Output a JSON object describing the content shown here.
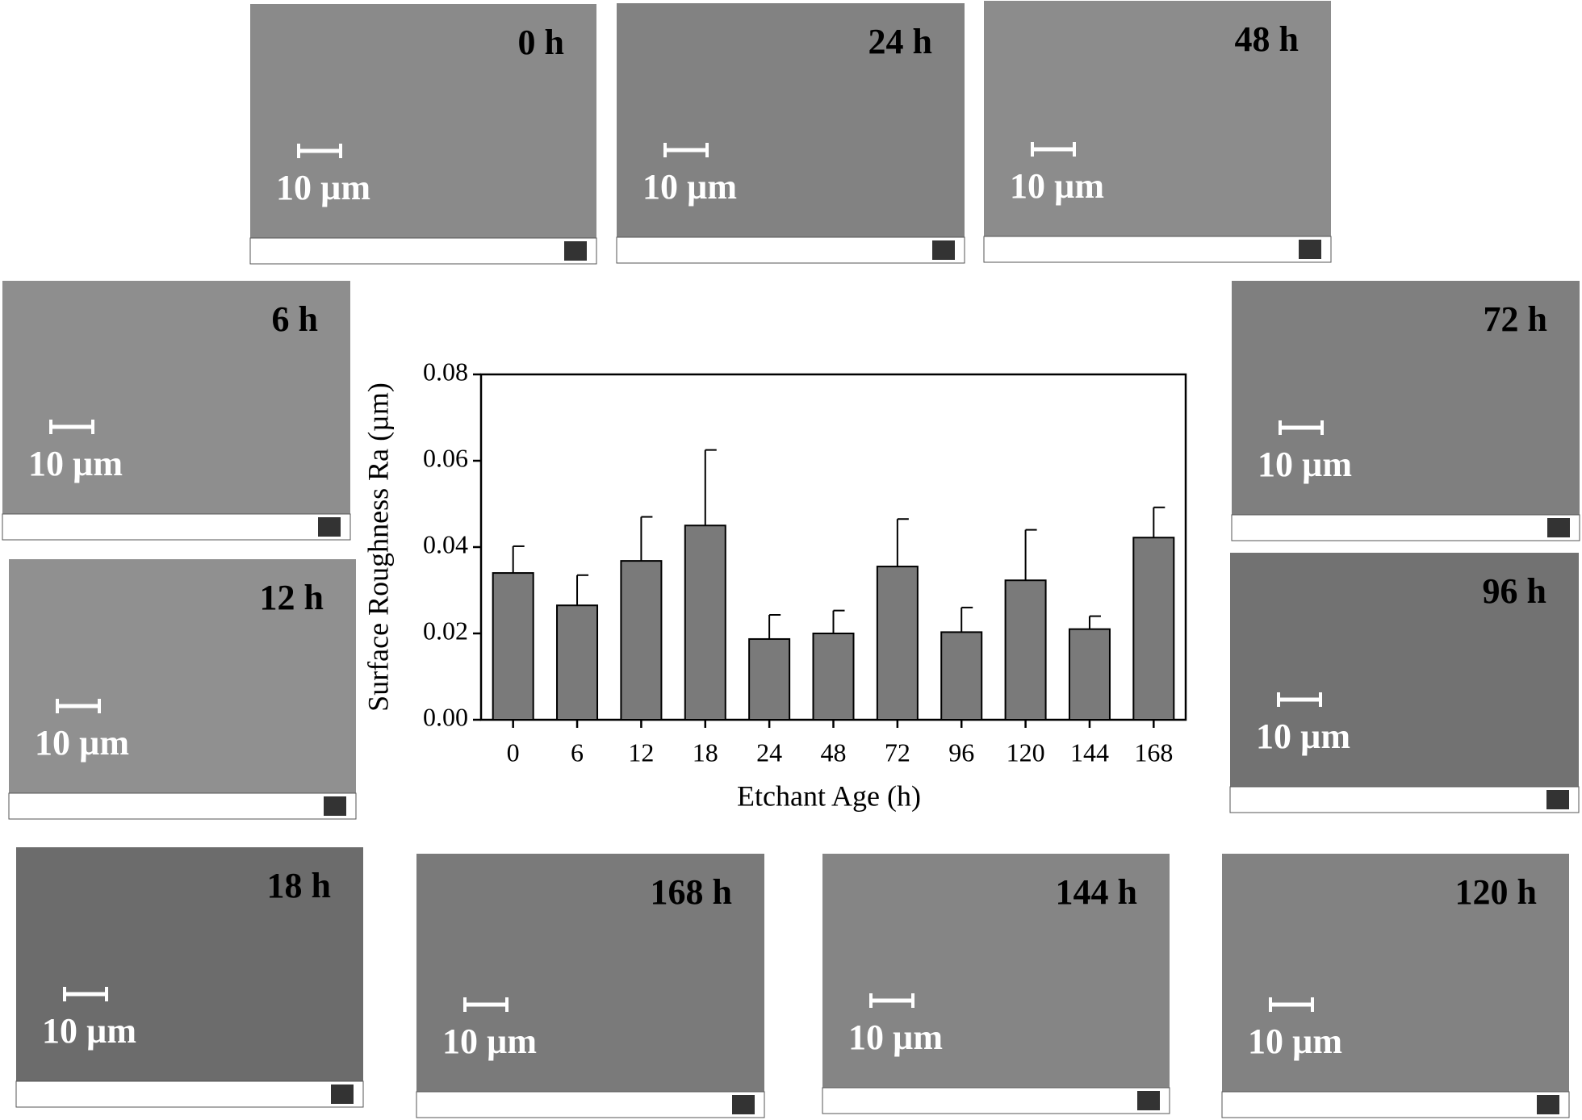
{
  "chart_data": {
    "type": "bar",
    "x_label": "Etchant Age (h)",
    "y_label": "Surface Roughness Ra (µm)",
    "categories": [
      "0",
      "6",
      "12",
      "18",
      "24",
      "48",
      "72",
      "96",
      "120",
      "144",
      "168"
    ],
    "values": [
      0.034,
      0.0265,
      0.0368,
      0.045,
      0.0187,
      0.02,
      0.0355,
      0.0203,
      0.0323,
      0.021,
      0.0422
    ],
    "errors": [
      0.0062,
      0.007,
      0.0102,
      0.0175,
      0.0056,
      0.0053,
      0.011,
      0.0057,
      0.0117,
      0.003,
      0.007
    ],
    "color": "#7a7a7a",
    "ylim": [
      0,
      0.08
    ],
    "yticks": [
      {
        "value": 0,
        "label": "0.00"
      },
      {
        "value": 0.02,
        "label": "0.02"
      },
      {
        "value": 0.04,
        "label": "0.04"
      },
      {
        "value": 0.06,
        "label": "0.06"
      },
      {
        "value": 0.08,
        "label": "0.08"
      }
    ]
  },
  "panels": [
    {
      "label": "0 h",
      "scale": "10 µm"
    },
    {
      "label": "24 h",
      "scale": "10 µm"
    },
    {
      "label": "48 h",
      "scale": "10 µm"
    },
    {
      "label": "6 h",
      "scale": "10 µm"
    },
    {
      "label": "12 h",
      "scale": "10 µm"
    },
    {
      "label": "72 h",
      "scale": "10 µm"
    },
    {
      "label": "96 h",
      "scale": "10 µm"
    },
    {
      "label": "18 h",
      "scale": "10 µm"
    },
    {
      "label": "168 h",
      "scale": "10 µm"
    },
    {
      "label": "144 h",
      "scale": "10 µm"
    },
    {
      "label": "120 h",
      "scale": "10 µm"
    }
  ]
}
